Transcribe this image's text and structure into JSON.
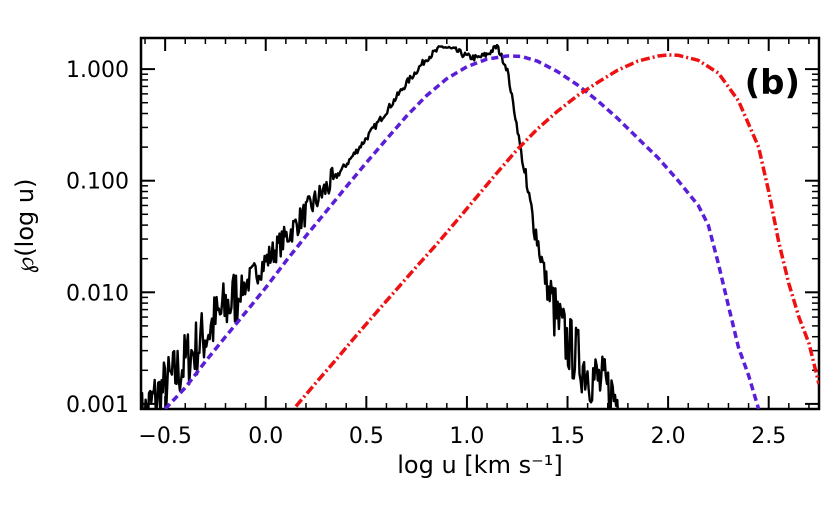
{
  "chart_data": {
    "type": "line",
    "panel_label": "(b)",
    "xlabel": "log u [km s⁻¹]",
    "ylabel": "℘(log u)",
    "xlim": [
      -0.62,
      2.75
    ],
    "ylim": [
      0.0009,
      1.9
    ],
    "yscale": "log",
    "grid": false,
    "x_ticks": [
      -0.5,
      0.0,
      0.5,
      1.0,
      1.5,
      2.0,
      2.5
    ],
    "x_tick_labels": [
      "−0.5",
      "0.0",
      "0.5",
      "1.0",
      "1.5",
      "2.0",
      "2.5"
    ],
    "y_ticks": [
      0.001,
      0.01,
      0.1,
      1.0
    ],
    "y_tick_labels": [
      "0.001",
      "0.010",
      "0.100",
      "1.000"
    ],
    "series": [
      {
        "name": "solid",
        "color": "#000000",
        "style": "solid",
        "noisy": true,
        "x": [
          -0.62,
          -0.55,
          -0.5,
          -0.45,
          -0.4,
          -0.35,
          -0.3,
          -0.2,
          -0.1,
          0.0,
          0.1,
          0.2,
          0.3,
          0.4,
          0.5,
          0.6,
          0.7,
          0.8,
          0.88,
          0.95,
          1.0,
          1.05,
          1.1,
          1.15,
          1.2,
          1.25,
          1.3,
          1.35,
          1.4,
          1.45,
          1.5,
          1.55,
          1.6,
          1.65,
          1.7,
          1.77
        ],
        "y": [
          0.0007,
          0.0011,
          0.0014,
          0.0018,
          0.0024,
          0.0031,
          0.0042,
          0.0072,
          0.0118,
          0.019,
          0.031,
          0.052,
          0.085,
          0.14,
          0.24,
          0.42,
          0.75,
          1.25,
          1.6,
          1.45,
          1.3,
          1.25,
          1.35,
          1.6,
          1.0,
          0.3,
          0.08,
          0.03,
          0.011,
          0.0055,
          0.0035,
          0.0026,
          0.002,
          0.0016,
          0.0013,
          0.001
        ]
      },
      {
        "name": "dashed",
        "color": "#5a1ed8",
        "style": "dashed",
        "noisy": false,
        "x": [
          -0.5,
          -0.4,
          -0.3,
          -0.2,
          -0.1,
          0.0,
          0.1,
          0.2,
          0.3,
          0.4,
          0.5,
          0.6,
          0.7,
          0.8,
          0.9,
          1.0,
          1.1,
          1.2,
          1.27,
          1.35,
          1.45,
          1.55,
          1.65,
          1.75,
          1.85,
          1.95,
          2.05,
          2.15,
          2.2,
          2.25,
          2.3,
          2.35,
          2.4,
          2.45
        ],
        "y": [
          0.0009,
          0.0014,
          0.0024,
          0.004,
          0.0066,
          0.011,
          0.019,
          0.032,
          0.053,
          0.088,
          0.145,
          0.235,
          0.38,
          0.58,
          0.82,
          1.05,
          1.23,
          1.31,
          1.3,
          1.18,
          0.95,
          0.72,
          0.52,
          0.36,
          0.24,
          0.16,
          0.1,
          0.06,
          0.04,
          0.018,
          0.0075,
          0.0032,
          0.0018,
          0.0009
        ]
      },
      {
        "name": "dash-dot",
        "color": "#ee1111",
        "style": "dashdot",
        "noisy": false,
        "x": [
          0.15,
          0.25,
          0.35,
          0.45,
          0.55,
          0.65,
          0.75,
          0.85,
          0.95,
          1.05,
          1.15,
          1.25,
          1.35,
          1.45,
          1.55,
          1.65,
          1.75,
          1.85,
          1.95,
          2.0,
          2.05,
          2.15,
          2.25,
          2.35,
          2.45,
          2.5,
          2.55,
          2.6,
          2.65,
          2.7,
          2.75
        ],
        "y": [
          0.00095,
          0.00155,
          0.0025,
          0.0041,
          0.0066,
          0.0106,
          0.017,
          0.027,
          0.044,
          0.072,
          0.118,
          0.19,
          0.29,
          0.42,
          0.58,
          0.76,
          0.98,
          1.18,
          1.31,
          1.34,
          1.33,
          1.2,
          0.92,
          0.52,
          0.2,
          0.08,
          0.028,
          0.012,
          0.006,
          0.0035,
          0.0015
        ]
      }
    ]
  }
}
